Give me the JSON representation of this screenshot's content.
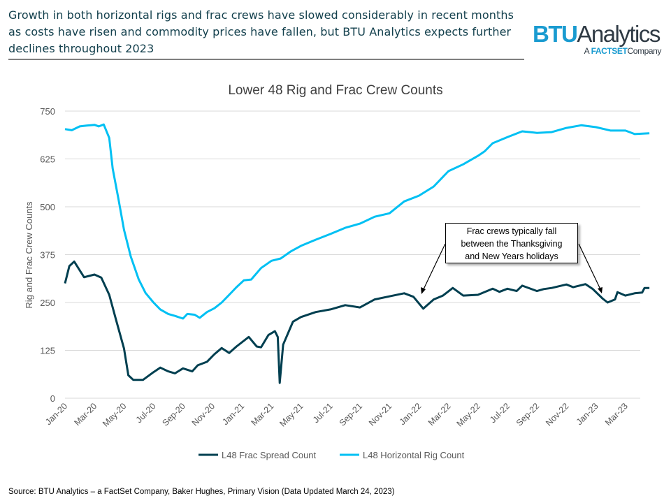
{
  "header": {
    "headline": "Growth in both horizontal rigs and frac crews have slowed considerably in recent months as costs have risen and commodity prices have fallen, but BTU Analytics expects further declines throughout 2023",
    "logo_text": "BTU Analytics",
    "logo_sub_prefix": "A",
    "logo_sub_brand": "FACTSET",
    "logo_sub_suffix": "Company"
  },
  "footer": {
    "source": "Source: BTU Analytics – a FactSet Company, Baker Hughes, Primary Vision (Data Updated March 24, 2023)"
  },
  "colors": {
    "frac": "#003f50",
    "rig": "#00c0f3",
    "grid": "#d9d9d9"
  },
  "chart_data": {
    "type": "line",
    "title": "Lower 48 Rig and Frac Crew Counts",
    "ylabel": "Rig and Frac Crew Counts",
    "xlabel": "",
    "ylim": [
      0,
      750
    ],
    "yticks": [
      "0",
      "125",
      "250",
      "375",
      "500",
      "625",
      "750"
    ],
    "xticks": [
      "Jan-20",
      "Mar-20",
      "May-20",
      "Jul-20",
      "Sep-20",
      "Nov-20",
      "Jan-21",
      "Mar-21",
      "May-21",
      "Jul-21",
      "Sep-21",
      "Nov-21",
      "Jan-22",
      "Mar-22",
      "May-22",
      "Jul-22",
      "Sep-22",
      "Nov-22",
      "Jan-23",
      "Mar-23"
    ],
    "grid": true,
    "legend_position": "bottom",
    "annotation": {
      "lines": [
        "Frac crews typically fall",
        "between the Thanksgiving",
        "and New Years holidays"
      ]
    },
    "series": [
      {
        "name": "L48 Frac Spread Count",
        "points": [
          [
            "2020-01-01",
            300
          ],
          [
            "2020-01-10",
            345
          ],
          [
            "2020-01-20",
            357
          ],
          [
            "2020-02-01",
            334
          ],
          [
            "2020-02-10",
            316
          ],
          [
            "2020-03-01",
            323
          ],
          [
            "2020-03-15",
            315
          ],
          [
            "2020-04-01",
            270
          ],
          [
            "2020-04-15",
            205
          ],
          [
            "2020-05-01",
            130
          ],
          [
            "2020-05-10",
            60
          ],
          [
            "2020-05-20",
            48
          ],
          [
            "2020-06-10",
            48
          ],
          [
            "2020-07-01",
            68
          ],
          [
            "2020-07-15",
            80
          ],
          [
            "2020-08-01",
            70
          ],
          [
            "2020-08-15",
            65
          ],
          [
            "2020-09-01",
            78
          ],
          [
            "2020-09-20",
            70
          ],
          [
            "2020-10-01",
            86
          ],
          [
            "2020-10-20",
            95
          ],
          [
            "2020-11-05",
            115
          ],
          [
            "2020-11-20",
            131
          ],
          [
            "2020-12-05",
            118
          ],
          [
            "2020-12-20",
            135
          ],
          [
            "2021-01-15",
            160
          ],
          [
            "2021-02-01",
            135
          ],
          [
            "2021-02-10",
            133
          ],
          [
            "2021-02-25",
            165
          ],
          [
            "2021-03-08",
            175
          ],
          [
            "2021-03-14",
            160
          ],
          [
            "2021-03-18",
            40
          ],
          [
            "2021-03-25",
            140
          ],
          [
            "2021-04-15",
            200
          ],
          [
            "2021-05-01",
            212
          ],
          [
            "2021-06-01",
            225
          ],
          [
            "2021-07-01",
            232
          ],
          [
            "2021-08-01",
            243
          ],
          [
            "2021-09-01",
            237
          ],
          [
            "2021-10-01",
            258
          ],
          [
            "2021-11-01",
            266
          ],
          [
            "2021-12-01",
            274
          ],
          [
            "2021-12-20",
            265
          ],
          [
            "2022-01-10",
            234
          ],
          [
            "2022-02-01",
            258
          ],
          [
            "2022-02-20",
            268
          ],
          [
            "2022-03-10",
            288
          ],
          [
            "2022-04-01",
            268
          ],
          [
            "2022-05-01",
            270
          ],
          [
            "2022-06-01",
            286
          ],
          [
            "2022-06-15",
            278
          ],
          [
            "2022-07-01",
            286
          ],
          [
            "2022-07-20",
            280
          ],
          [
            "2022-08-01",
            294
          ],
          [
            "2022-09-01",
            280
          ],
          [
            "2022-09-15",
            285
          ],
          [
            "2022-10-01",
            288
          ],
          [
            "2022-11-01",
            297
          ],
          [
            "2022-11-15",
            290
          ],
          [
            "2022-12-10",
            298
          ],
          [
            "2022-12-25",
            285
          ],
          [
            "2023-01-15",
            260
          ],
          [
            "2023-01-25",
            250
          ],
          [
            "2023-02-10",
            258
          ],
          [
            "2023-02-15",
            277
          ],
          [
            "2023-03-01",
            268
          ],
          [
            "2023-03-20",
            274
          ],
          [
            "2023-04-05",
            276
          ],
          [
            "2023-04-10",
            288
          ],
          [
            "2023-04-20",
            288
          ]
        ]
      },
      {
        "name": "L48 Horizontal Rig Count",
        "points": [
          [
            "2020-01-01",
            703
          ],
          [
            "2020-01-15",
            700
          ],
          [
            "2020-02-01",
            710
          ],
          [
            "2020-02-15",
            712
          ],
          [
            "2020-03-01",
            714
          ],
          [
            "2020-03-10",
            710
          ],
          [
            "2020-03-20",
            715
          ],
          [
            "2020-04-01",
            680
          ],
          [
            "2020-04-08",
            600
          ],
          [
            "2020-04-20",
            520
          ],
          [
            "2020-05-01",
            440
          ],
          [
            "2020-05-15",
            370
          ],
          [
            "2020-06-01",
            310
          ],
          [
            "2020-06-15",
            275
          ],
          [
            "2020-07-01",
            250
          ],
          [
            "2020-07-15",
            232
          ],
          [
            "2020-08-01",
            220
          ],
          [
            "2020-08-15",
            215
          ],
          [
            "2020-09-01",
            208
          ],
          [
            "2020-09-10",
            220
          ],
          [
            "2020-09-25",
            218
          ],
          [
            "2020-10-05",
            210
          ],
          [
            "2020-10-20",
            225
          ],
          [
            "2020-11-05",
            235
          ],
          [
            "2020-11-20",
            250
          ],
          [
            "2020-12-05",
            270
          ],
          [
            "2020-12-20",
            290
          ],
          [
            "2021-01-05",
            308
          ],
          [
            "2021-01-20",
            310
          ],
          [
            "2021-02-10",
            340
          ],
          [
            "2021-03-01",
            359
          ],
          [
            "2021-03-20",
            365
          ],
          [
            "2021-04-10",
            383
          ],
          [
            "2021-05-01",
            398
          ],
          [
            "2021-06-01",
            414
          ],
          [
            "2021-07-01",
            429
          ],
          [
            "2021-08-01",
            445
          ],
          [
            "2021-09-01",
            456
          ],
          [
            "2021-10-01",
            474
          ],
          [
            "2021-11-01",
            483
          ],
          [
            "2021-12-01",
            514
          ],
          [
            "2022-01-01",
            529
          ],
          [
            "2022-02-01",
            553
          ],
          [
            "2022-03-01",
            593
          ],
          [
            "2022-04-01",
            611
          ],
          [
            "2022-05-01",
            633
          ],
          [
            "2022-05-15",
            645
          ],
          [
            "2022-06-01",
            666
          ],
          [
            "2022-07-01",
            682
          ],
          [
            "2022-08-01",
            697
          ],
          [
            "2022-09-01",
            693
          ],
          [
            "2022-10-01",
            695
          ],
          [
            "2022-11-01",
            706
          ],
          [
            "2022-12-01",
            713
          ],
          [
            "2023-01-01",
            708
          ],
          [
            "2023-02-01",
            699
          ],
          [
            "2023-03-01",
            699
          ],
          [
            "2023-03-20",
            690
          ],
          [
            "2023-04-20",
            692
          ]
        ]
      }
    ]
  }
}
